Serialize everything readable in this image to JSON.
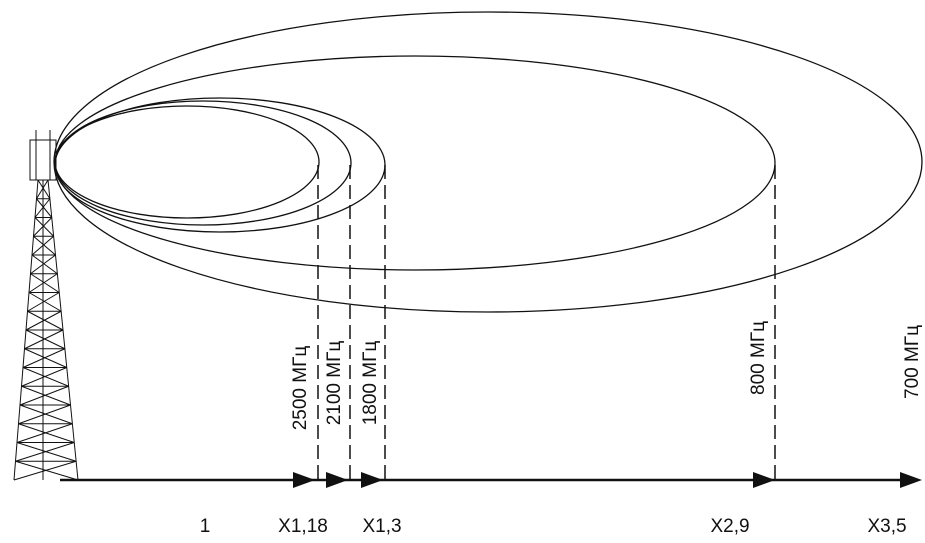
{
  "frequency_labels": [
    "2500 МГц",
    "2100 МГц",
    "1800 МГц",
    "800 МГц",
    "700 МГц"
  ],
  "axis_labels": [
    "1",
    "X1,18",
    "X1,3",
    "X2,9",
    "X3,5"
  ]
}
